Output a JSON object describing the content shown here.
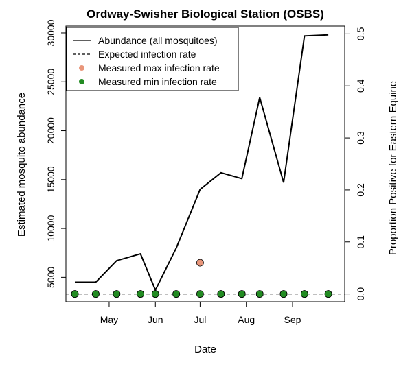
{
  "chart_data": {
    "type": "line",
    "title": "Ordway-Swisher Biological Station (OSBS)",
    "xlabel": "Date",
    "ylabel": "Estimated mosquito abundance",
    "y2label": "Proportion Positive for Eastern Equine",
    "x_ticks": [
      {
        "label": "May",
        "date": "2016-05-01"
      },
      {
        "label": "Jun",
        "date": "2016-06-01"
      },
      {
        "label": "Jul",
        "date": "2016-07-01"
      },
      {
        "label": "Aug",
        "date": "2016-08-01"
      },
      {
        "label": "Sep",
        "date": "2016-09-01"
      }
    ],
    "xlim": [
      "2016-04-02",
      "2016-10-06"
    ],
    "y_ticks": [
      5000,
      10000,
      15000,
      20000,
      25000,
      30000
    ],
    "ylim": [
      2500,
      30700
    ],
    "y2_ticks": [
      0.0,
      0.1,
      0.2,
      0.3,
      0.4,
      0.5
    ],
    "y2lim": [
      -0.015,
      0.515
    ],
    "legend": {
      "position": "top-left",
      "entries": [
        {
          "label": "Abundance (all mosquitoes)",
          "symbol": "line",
          "color": "#000000"
        },
        {
          "label": "Expected infection rate",
          "symbol": "dashed",
          "color": "#000000"
        },
        {
          "label": "Measured max infection rate",
          "symbol": "point",
          "color": "#E9967A"
        },
        {
          "label": "Measured min infection rate",
          "symbol": "point",
          "color": "#228B22"
        }
      ]
    },
    "series": [
      {
        "name": "Abundance (all mosquitoes)",
        "axis": "left",
        "style": "line",
        "color": "#000000",
        "x": [
          "2016-04-08",
          "2016-04-22",
          "2016-05-06",
          "2016-05-22",
          "2016-06-01",
          "2016-06-15",
          "2016-07-01",
          "2016-07-15",
          "2016-07-29",
          "2016-08-10",
          "2016-08-26",
          "2016-09-09",
          "2016-09-25"
        ],
        "values": [
          4500,
          4500,
          6700,
          7400,
          3700,
          8000,
          14000,
          15700,
          15100,
          23400,
          14700,
          29700,
          29800
        ]
      },
      {
        "name": "Expected infection rate",
        "axis": "right",
        "style": "dashed",
        "color": "#000000",
        "x": [
          "2016-04-02",
          "2016-10-06"
        ],
        "values": [
          0.0,
          0.0
        ]
      },
      {
        "name": "Measured max infection rate",
        "axis": "right",
        "style": "points",
        "color": "#E9967A",
        "x": [
          "2016-04-08",
          "2016-04-22",
          "2016-05-06",
          "2016-05-22",
          "2016-06-01",
          "2016-06-15",
          "2016-07-01",
          "2016-07-15",
          "2016-07-29",
          "2016-08-10",
          "2016-08-26",
          "2016-09-09",
          "2016-09-25"
        ],
        "values": [
          0.0,
          0.0,
          0.0,
          0.0,
          0.0,
          0.0,
          0.06,
          0.0,
          0.0,
          0.0,
          0.0,
          0.0,
          0.0
        ]
      },
      {
        "name": "Measured min infection rate",
        "axis": "right",
        "style": "points",
        "color": "#228B22",
        "x": [
          "2016-04-08",
          "2016-04-22",
          "2016-05-06",
          "2016-05-22",
          "2016-06-01",
          "2016-06-15",
          "2016-07-01",
          "2016-07-15",
          "2016-07-29",
          "2016-08-10",
          "2016-08-26",
          "2016-09-09",
          "2016-09-25"
        ],
        "values": [
          0.0,
          0.0,
          0.0,
          0.0,
          0.0,
          0.0,
          0.0,
          0.0,
          0.0,
          0.0,
          0.0,
          0.0,
          0.0
        ]
      }
    ],
    "grid": false
  }
}
